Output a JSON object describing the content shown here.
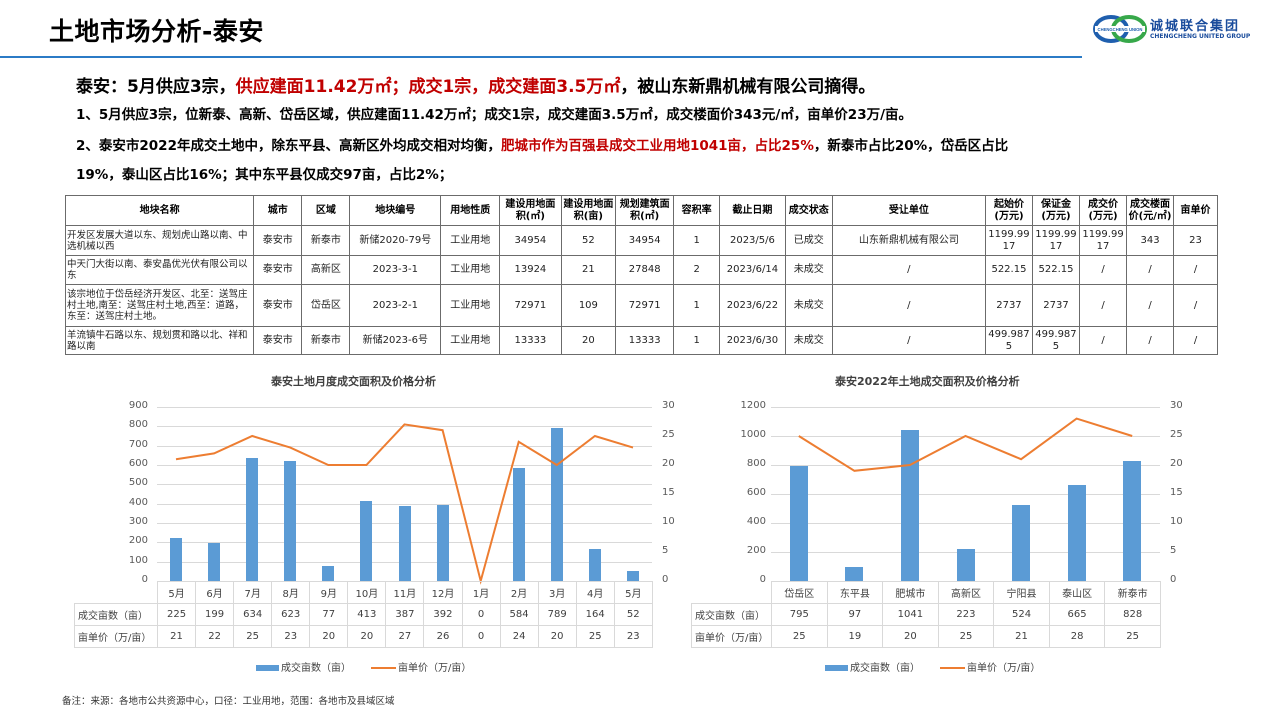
{
  "header": {
    "title": "土地市场分析-泰安",
    "logo_cn": "诚城联合集团",
    "logo_en": "CHENGCHENG UNITED GROUP",
    "logo_mark_text": "CHENGCHENG UNION"
  },
  "headline": {
    "p1": "泰安：5月供应3宗，",
    "p2": "供应建面11.42万㎡；成交1宗，成交建面3.5万㎡",
    "p3": "，被山东新鼎机械有限公司摘得。"
  },
  "paragraphs": {
    "line1": "1、5月供应3宗，位新泰、高新、岱岳区域，供应建面11.42万㎡；成交1宗，成交建面3.5万㎡，成交楼面价343元/㎡，亩单价23万/亩。",
    "line2a": "2、泰安市2022年成交土地中，除东平县、高新区外均成交相对均衡，",
    "line2b": "肥城市作为百强县成交工业用地1041亩，占比25%",
    "line2c": "，新泰市占比20%，岱岳区占比",
    "line3": "19%，泰山区占比16%；其中东平县仅成交97亩，占比2%；"
  },
  "land_table": {
    "headers": [
      "地块名称",
      "城市",
      "区域",
      "地块编号",
      "用地性质",
      "建设用地面积(㎡)",
      "建设用地面积(亩)",
      "规划建筑面积(㎡)",
      "容积率",
      "截止日期",
      "成交状态",
      "受让单位",
      "起始价(万元)",
      "保证金(万元)",
      "成交价(万元)",
      "成交楼面价(元/㎡)",
      "亩单价"
    ],
    "rows": [
      [
        "开发区发展大道以东、规划虎山路以南、中选机械以西",
        "泰安市",
        "新泰市",
        "新储2020-79号",
        "工业用地",
        "34954",
        "52",
        "34954",
        "1",
        "2023/5/6",
        "已成交",
        "山东新鼎机械有限公司",
        "1199.9917",
        "1199.9917",
        "1199.9917",
        "343",
        "23"
      ],
      [
        "中天门大街以南、泰安晶优光伏有限公司以东",
        "泰安市",
        "高新区",
        "2023-3-1",
        "工业用地",
        "13924",
        "21",
        "27848",
        "2",
        "2023/6/14",
        "未成交",
        "/",
        "522.15",
        "522.15",
        "/",
        "/",
        "/"
      ],
      [
        "该宗地位于岱岳经济开发区、北至：送驾庄村土地,南至：送驾庄村土地,西至：道路，东至：送驾庄村土地。",
        "泰安市",
        "岱岳区",
        "2023-2-1",
        "工业用地",
        "72971",
        "109",
        "72971",
        "1",
        "2023/6/22",
        "未成交",
        "/",
        "2737",
        "2737",
        "/",
        "/",
        "/"
      ],
      [
        "羊流镇牛石路以东、规划贯和路以北、祥和路以南",
        "泰安市",
        "新泰市",
        "新储2023-6号",
        "工业用地",
        "13333",
        "20",
        "13333",
        "1",
        "2023/6/30",
        "未成交",
        "/",
        "499.9875",
        "499.9875",
        "/",
        "/",
        "/"
      ]
    ]
  },
  "chart_data": [
    {
      "type": "bar",
      "title": "泰安土地月度成交面积及价格分析",
      "categories": [
        "5月",
        "6月",
        "7月",
        "8月",
        "9月",
        "10月",
        "11月",
        "12月",
        "1月",
        "2月",
        "3月",
        "4月",
        "5月"
      ],
      "series": [
        {
          "name": "成交亩数（亩）",
          "type": "bar",
          "axis": "left",
          "color": "#5b9bd5",
          "values": [
            225,
            199,
            634,
            623,
            77,
            413,
            387,
            392,
            0,
            584,
            789,
            164,
            52
          ]
        },
        {
          "name": "亩单价（万/亩）",
          "type": "line",
          "axis": "right",
          "color": "#ed7d31",
          "values": [
            21,
            22,
            25,
            23,
            20,
            20,
            27,
            26,
            0,
            24,
            20,
            25,
            23
          ]
        }
      ],
      "y_left": {
        "ticks": [
          "0",
          "100",
          "200",
          "300",
          "400",
          "500",
          "600",
          "700",
          "800",
          "900"
        ],
        "range": [
          0,
          900
        ]
      },
      "y_right": {
        "ticks": [
          "0",
          "5",
          "10",
          "15",
          "20",
          "25",
          "30"
        ],
        "range": [
          0,
          30
        ]
      },
      "grid": true,
      "legend_position": "bottom",
      "data_table": true
    },
    {
      "type": "bar",
      "title": "泰安2022年土地成交面积及价格分析",
      "categories": [
        "岱岳区",
        "东平县",
        "肥城市",
        "高新区",
        "宁阳县",
        "泰山区",
        "新泰市"
      ],
      "series": [
        {
          "name": "成交亩数（亩）",
          "type": "bar",
          "axis": "left",
          "color": "#5b9bd5",
          "values": [
            795,
            97,
            1041,
            223,
            524,
            665,
            828
          ]
        },
        {
          "name": "亩单价（万/亩）",
          "type": "line",
          "axis": "right",
          "color": "#ed7d31",
          "values": [
            25,
            19,
            20,
            25,
            21,
            28,
            25
          ]
        }
      ],
      "y_left": {
        "ticks": [
          "0",
          "200",
          "400",
          "600",
          "800",
          "1000",
          "1200"
        ],
        "range": [
          0,
          1200
        ]
      },
      "y_right": {
        "ticks": [
          "0",
          "5",
          "10",
          "15",
          "20",
          "25",
          "30"
        ],
        "range": [
          0,
          30
        ]
      },
      "grid": true,
      "legend_position": "bottom",
      "data_table": true
    }
  ],
  "footnote": "备注：来源：各地市公共资源中心，口径：工业用地，范围：各地市及县域区域"
}
